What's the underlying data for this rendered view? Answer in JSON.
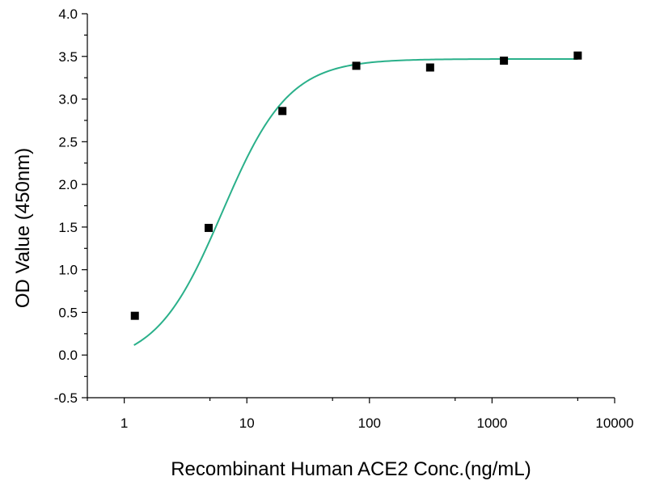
{
  "chart_data": {
    "type": "scatter",
    "title": "",
    "xlabel": "Recombinant Human ACE2 Conc.(ng/mL)",
    "ylabel": "OD Value (450nm)",
    "x_scale": "log",
    "xlim": [
      0.5,
      10000
    ],
    "ylim": [
      -0.5,
      4.0
    ],
    "x_ticks": [
      1,
      10,
      100,
      1000,
      10000
    ],
    "x_tick_labels": [
      "1",
      "10",
      "100",
      "1000",
      "10000"
    ],
    "y_ticks": [
      -0.5,
      0.0,
      0.5,
      1.0,
      1.5,
      2.0,
      2.5,
      3.0,
      3.5,
      4.0
    ],
    "y_tick_labels": [
      "-0.5",
      "0.0",
      "0.5",
      "1.0",
      "1.5",
      "2.0",
      "2.5",
      "3.0",
      "3.5",
      "4.0"
    ],
    "grid": false,
    "legend": "none",
    "series": [
      {
        "kind": "points",
        "color": "#000000",
        "marker": "square",
        "x": [
          1.22,
          4.88,
          19.5,
          78.1,
          312.5,
          1250,
          5000
        ],
        "y": [
          0.46,
          1.49,
          2.86,
          3.39,
          3.37,
          3.45,
          3.51
        ]
      },
      {
        "kind": "fit-curve",
        "color": "#2ab08a",
        "fit": "4PL",
        "x_range": [
          1.2,
          5000
        ],
        "bottom": -0.12,
        "top": 3.47,
        "ec50": 6.3,
        "hill": 1.6
      }
    ]
  }
}
